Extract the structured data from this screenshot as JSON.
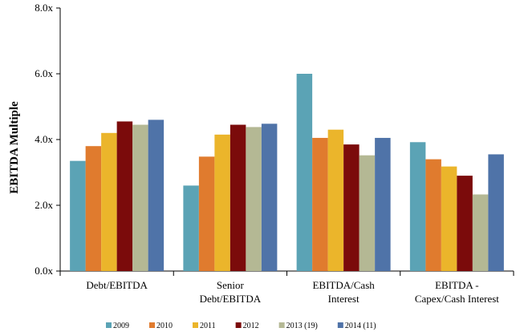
{
  "chart_data": {
    "type": "bar",
    "ylabel": "EBITDA Multiple",
    "xlabel": "",
    "ylim": [
      0,
      8
    ],
    "yticks": [
      "0.0x",
      "2.0x",
      "4.0x",
      "6.0x",
      "8.0x"
    ],
    "ytick_values": [
      0,
      2,
      4,
      6,
      8
    ],
    "grid": false,
    "legend_position": "bottom",
    "categories": [
      [
        "Debt/EBITDA"
      ],
      [
        "Senior",
        "Debt/EBITDA"
      ],
      [
        "EBITDA/Cash",
        "Interest"
      ],
      [
        "EBITDA -",
        "Capex/Cash Interest"
      ]
    ],
    "series": [
      {
        "name": "2009",
        "color": "#5BA3B5",
        "values": [
          3.35,
          2.6,
          6.0,
          3.92
        ]
      },
      {
        "name": "2010",
        "color": "#E07B2E",
        "values": [
          3.8,
          3.48,
          4.05,
          3.4
        ]
      },
      {
        "name": "2011",
        "color": "#EBB52B",
        "values": [
          4.2,
          4.15,
          4.3,
          3.18
        ]
      },
      {
        "name": "2012",
        "color": "#7B0B0B",
        "values": [
          4.55,
          4.45,
          3.85,
          2.9
        ]
      },
      {
        "name": "2013 (19)",
        "color": "#B4B894",
        "values": [
          4.45,
          4.38,
          3.52,
          2.33
        ]
      },
      {
        "name": "2014 (11)",
        "color": "#4F73A8",
        "values": [
          4.6,
          4.48,
          4.05,
          3.55
        ]
      }
    ]
  }
}
